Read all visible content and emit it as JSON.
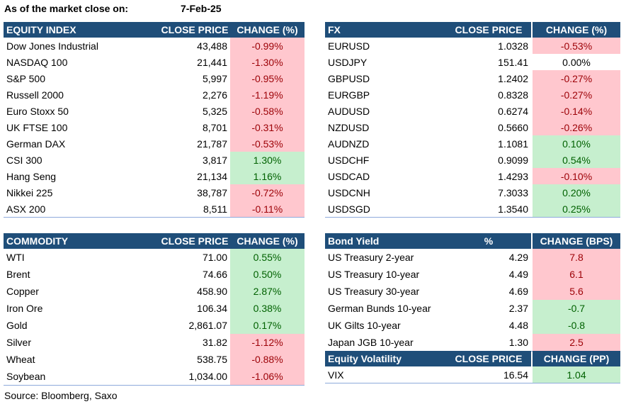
{
  "header": {
    "label": "As of the market close on:",
    "date": "7-Feb-25"
  },
  "equity": {
    "headers": [
      "EQUITY INDEX",
      "CLOSE PRICE",
      "CHANGE (%)"
    ],
    "rows": [
      [
        "Dow Jones Industrial",
        "43,488",
        "-0.99%"
      ],
      [
        "NASDAQ 100",
        "21,441",
        "-1.30%"
      ],
      [
        "S&P 500",
        "5,997",
        "-0.95%"
      ],
      [
        "Russell 2000",
        "2,276",
        "-1.19%"
      ],
      [
        "Euro Stoxx 50",
        "5,325",
        "-0.58%"
      ],
      [
        "UK FTSE 100",
        "8,701",
        "-0.31%"
      ],
      [
        "German DAX",
        "21,787",
        "-0.53%"
      ],
      [
        "CSI 300",
        "3,817",
        "1.30%"
      ],
      [
        "Hang Seng",
        "21,134",
        "1.16%"
      ],
      [
        "Nikkei 225",
        "38,787",
        "-0.72%"
      ],
      [
        "ASX 200",
        "8,511",
        "-0.11%"
      ]
    ],
    "change_fill": [
      "red",
      "red",
      "red",
      "red",
      "red",
      "red",
      "red",
      "green",
      "green",
      "red",
      "red"
    ]
  },
  "fx": {
    "headers": [
      "FX",
      "CLOSE PRICE",
      "CHANGE (%)"
    ],
    "rows": [
      [
        "EURUSD",
        "1.0328",
        "-0.53%"
      ],
      [
        "USDJPY",
        "151.41",
        "0.00%"
      ],
      [
        "GBPUSD",
        "1.2402",
        "-0.27%"
      ],
      [
        "EURGBP",
        "0.8328",
        "-0.27%"
      ],
      [
        "AUDUSD",
        "0.6274",
        "-0.14%"
      ],
      [
        "NZDUSD",
        "0.5660",
        "-0.26%"
      ],
      [
        "AUDNZD",
        "1.1081",
        "0.10%"
      ],
      [
        "USDCHF",
        "0.9099",
        "0.54%"
      ],
      [
        "USDCAD",
        "1.4293",
        "-0.10%"
      ],
      [
        "USDCNH",
        "7.3033",
        "0.20%"
      ],
      [
        "USDSGD",
        "1.3540",
        "0.25%"
      ]
    ],
    "change_fill": [
      "red",
      "none",
      "red",
      "red",
      "red",
      "red",
      "green",
      "green",
      "red",
      "green",
      "green"
    ]
  },
  "commodity": {
    "headers": [
      "COMMODITY",
      "CLOSE PRICE",
      "CHANGE (%)"
    ],
    "rows": [
      [
        "WTI",
        "71.00",
        "0.55%"
      ],
      [
        "Brent",
        "74.66",
        "0.50%"
      ],
      [
        "Copper",
        "458.90",
        "2.87%"
      ],
      [
        "Iron Ore",
        "106.34",
        "0.38%"
      ],
      [
        "Gold",
        "2,861.07",
        "0.17%"
      ],
      [
        "Silver",
        "31.82",
        "-1.12%"
      ],
      [
        "Wheat",
        "538.75",
        "-0.88%"
      ],
      [
        "Soybean",
        "1,034.00",
        "-1.06%"
      ]
    ],
    "change_fill": [
      "green",
      "green",
      "green",
      "green",
      "green",
      "red",
      "red",
      "red"
    ]
  },
  "bond": {
    "headers": [
      "Bond Yield",
      "%",
      "CHANGE (BPS)"
    ],
    "rows": [
      [
        "US Treasury 2-year",
        "4.29",
        "7.8"
      ],
      [
        "US Treasury 10-year",
        "4.49",
        "6.1"
      ],
      [
        "US Treasury 30-year",
        "4.69",
        "5.6"
      ],
      [
        "German Bunds 10-year",
        "2.37",
        "-0.7"
      ],
      [
        "UK Gilts 10-year",
        "4.48",
        "-0.8"
      ],
      [
        "Japan JGB 10-year",
        "1.30",
        "2.5"
      ]
    ],
    "change_fill": [
      "red",
      "red",
      "red",
      "green",
      "green",
      "red"
    ]
  },
  "volatility": {
    "headers": [
      "Equity Volatility",
      "CLOSE PRICE",
      "CHANGE (PP)"
    ],
    "rows": [
      [
        "VIX",
        "16.54",
        "1.04"
      ]
    ],
    "change_fill": [
      "green"
    ]
  },
  "source": "Source: Bloomberg, Saxo"
}
